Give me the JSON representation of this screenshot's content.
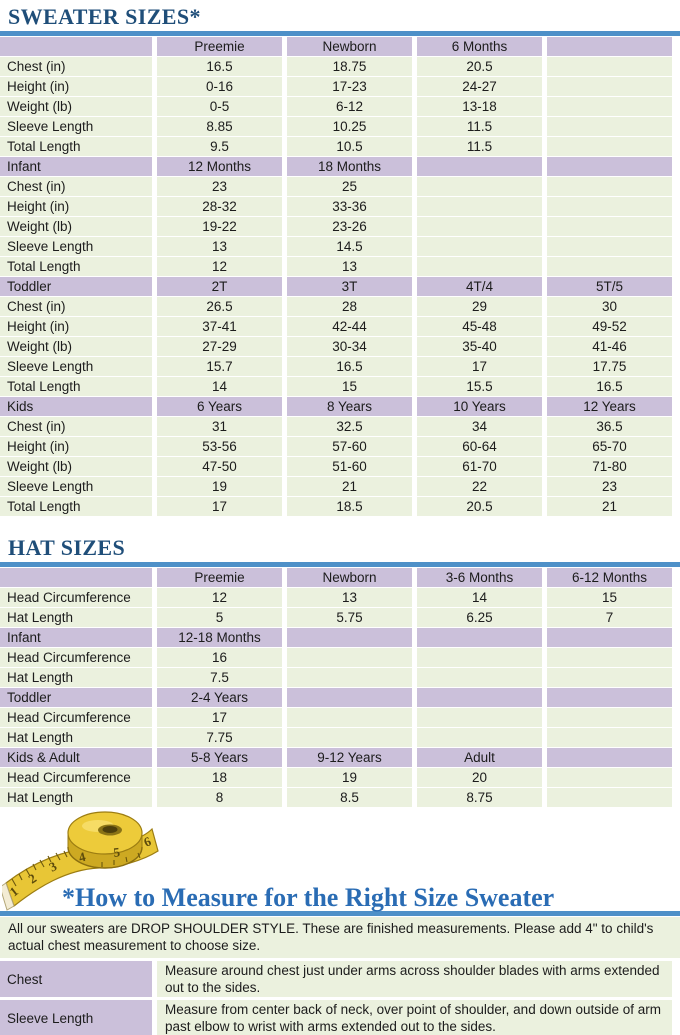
{
  "colors": {
    "header_purple": "#cbc0da",
    "row_green": "#ebf1de",
    "title_navy": "#1f4e79",
    "measure_title_blue": "#2a6cb4",
    "rule_blue": "#4e90c8",
    "tape_yellow": "#e8c636"
  },
  "sweater_table": {
    "title": "SWEATER SIZES*",
    "row_labels": [
      "Chest (in)",
      "Height (in)",
      "Weight (lb)",
      "Sleeve Length",
      "Total Length"
    ],
    "sections": [
      {
        "label": "",
        "columns": [
          "Preemie",
          "Newborn",
          "6 Months",
          ""
        ],
        "rows": [
          [
            "16.5",
            "18.75",
            "20.5",
            ""
          ],
          [
            "0-16",
            "17-23",
            "24-27",
            ""
          ],
          [
            "0-5",
            "6-12",
            "13-18",
            ""
          ],
          [
            "8.85",
            "10.25",
            "11.5",
            ""
          ],
          [
            "9.5",
            "10.5",
            "11.5",
            ""
          ]
        ]
      },
      {
        "label": "Infant",
        "columns": [
          "12 Months",
          "18 Months",
          "",
          ""
        ],
        "rows": [
          [
            "23",
            "25",
            "",
            ""
          ],
          [
            "28-32",
            "33-36",
            "",
            ""
          ],
          [
            "19-22",
            "23-26",
            "",
            ""
          ],
          [
            "13",
            "14.5",
            "",
            ""
          ],
          [
            "12",
            "13",
            "",
            ""
          ]
        ]
      },
      {
        "label": "Toddler",
        "columns": [
          "2T",
          "3T",
          "4T/4",
          "5T/5"
        ],
        "rows": [
          [
            "26.5",
            "28",
            "29",
            "30"
          ],
          [
            "37-41",
            "42-44",
            "45-48",
            "49-52"
          ],
          [
            "27-29",
            "30-34",
            "35-40",
            "41-46"
          ],
          [
            "15.7",
            "16.5",
            "17",
            "17.75"
          ],
          [
            "14",
            "15",
            "15.5",
            "16.5"
          ]
        ]
      },
      {
        "label": "Kids",
        "columns": [
          "6 Years",
          "8 Years",
          "10 Years",
          "12 Years"
        ],
        "rows": [
          [
            "31",
            "32.5",
            "34",
            "36.5"
          ],
          [
            "53-56",
            "57-60",
            "60-64",
            "65-70"
          ],
          [
            "47-50",
            "51-60",
            "61-70",
            "71-80"
          ],
          [
            "19",
            "21",
            "22",
            "23"
          ],
          [
            "17",
            "18.5",
            "20.5",
            "21"
          ]
        ]
      }
    ]
  },
  "hat_table": {
    "title": "HAT SIZES",
    "row_labels": [
      "Head Circumference",
      "Hat Length"
    ],
    "sections": [
      {
        "label": "",
        "columns": [
          "Preemie",
          "Newborn",
          "3-6 Months",
          "6-12 Months"
        ],
        "rows": [
          [
            "12",
            "13",
            "14",
            "15"
          ],
          [
            "5",
            "5.75",
            "6.25",
            "7"
          ]
        ]
      },
      {
        "label": "Infant",
        "columns": [
          "12-18 Months",
          "",
          "",
          ""
        ],
        "rows": [
          [
            "16",
            "",
            "",
            ""
          ],
          [
            "7.5",
            "",
            "",
            ""
          ]
        ]
      },
      {
        "label": "Toddler",
        "columns": [
          "2-4 Years",
          "",
          "",
          ""
        ],
        "rows": [
          [
            "17",
            "",
            "",
            ""
          ],
          [
            "7.75",
            "",
            "",
            ""
          ]
        ]
      },
      {
        "label": "Kids & Adult",
        "columns": [
          "5-8 Years",
          "9-12 Years",
          "Adult",
          ""
        ],
        "rows": [
          [
            "18",
            "19",
            "20",
            ""
          ],
          [
            "8",
            "8.5",
            "8.75",
            ""
          ]
        ]
      }
    ]
  },
  "measure": {
    "title": "*How to Measure for the Right Size Sweater",
    "intro": "All our sweaters are DROP SHOULDER STYLE.  These are finished measurements.  Please add 4\" to child's actual chest measurement to choose size.",
    "rows": [
      {
        "label": "Chest",
        "text": "Measure around chest just under arms across shoulder blades with arms extended out to the sides."
      },
      {
        "label": "Sleeve Length",
        "text": "Measure from center back of neck, over point of shoulder, and down outside of arm past elbow to wrist with arms extended out to the sides."
      }
    ]
  },
  "tape_numbers": [
    "1",
    "2",
    "3",
    "4",
    "5",
    "6"
  ]
}
